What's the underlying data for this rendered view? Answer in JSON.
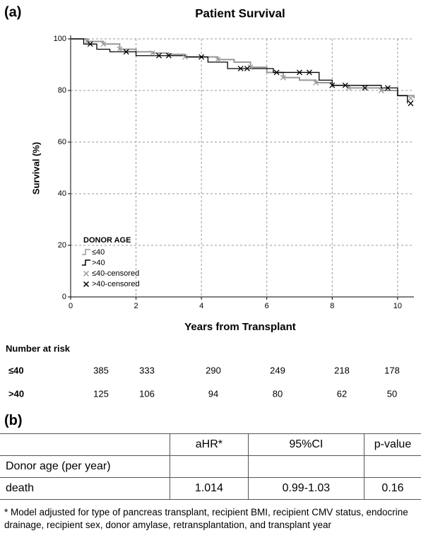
{
  "panel_a": "(a)",
  "chart_data": {
    "type": "step",
    "title": "Patient Survival",
    "x_label": "Years from Transplant",
    "y_label": "Survival (%)",
    "xlim": [
      0,
      10.5
    ],
    "ylim": [
      0,
      100
    ],
    "xticks": [
      0,
      2,
      4,
      6,
      8,
      10
    ],
    "yticks": [
      0,
      20,
      40,
      60,
      80,
      100
    ],
    "grid": true,
    "legend_title": "DONOR AGE",
    "legend": "lower left",
    "series": [
      {
        "name": "≤40",
        "color": "#999999",
        "x": [
          0,
          0.5,
          1,
          1.5,
          2,
          2.5,
          3,
          3.5,
          4,
          4.5,
          5,
          5.5,
          6,
          6.5,
          7,
          7.5,
          8,
          8.5,
          9,
          9.5,
          10,
          10.5
        ],
        "values": [
          100,
          99,
          98,
          96,
          95,
          94.5,
          94,
          93,
          93,
          92,
          91,
          89,
          87,
          85,
          84,
          83,
          82,
          81,
          81,
          80,
          78,
          77
        ]
      },
      {
        "name": ">40",
        "color": "#000000",
        "x": [
          0,
          0.4,
          0.8,
          1.2,
          2,
          3.5,
          4.2,
          4.8,
          6.2,
          7.6,
          8,
          9.5,
          10,
          10.3
        ],
        "values": [
          100,
          98,
          96,
          95,
          93.5,
          93,
          91,
          88.5,
          87,
          84,
          82,
          81,
          78,
          75
        ]
      }
    ],
    "censored": [
      {
        "name": "≤40-censored",
        "color": "#999999",
        "x": [
          0.5,
          1,
          1.5,
          2.5,
          3.5,
          4.5,
          5.5,
          6.5,
          7.5,
          8.5,
          9.5,
          10.4
        ],
        "values": [
          99,
          98,
          96,
          94.5,
          93,
          92,
          89,
          85,
          83,
          81,
          80,
          77
        ]
      },
      {
        "name": ">40-censored",
        "color": "#000000",
        "x": [
          0.6,
          1.7,
          2.7,
          3,
          4,
          5.2,
          5.4,
          6.3,
          7,
          7.3,
          8,
          8.4,
          9,
          9.7,
          10.4
        ],
        "values": [
          98,
          95,
          93.5,
          93.5,
          93,
          88.5,
          88.5,
          87,
          87,
          87,
          82,
          82,
          81,
          81,
          75
        ]
      }
    ]
  },
  "risk_table": {
    "title": "Number at risk",
    "rows": [
      {
        "label": "≤40",
        "values": [
          385,
          333,
          290,
          249,
          218,
          178
        ]
      },
      {
        "label": ">40",
        "values": [
          125,
          106,
          94,
          80,
          62,
          50
        ]
      }
    ]
  },
  "panel_b": "(b)",
  "table": {
    "header": [
      "aHR*",
      "95%CI",
      "p-value"
    ],
    "rows": [
      [
        "Donor age (per year)"
      ],
      [
        "death",
        1.014,
        "0.99-1.03",
        0.16
      ]
    ]
  },
  "footnote": "* Model adjusted for type of pancreas transplant, recipient BMI, recipient CMV status, endocrine drainage, recipient sex, donor amylase, retransplantation, and transplant year"
}
